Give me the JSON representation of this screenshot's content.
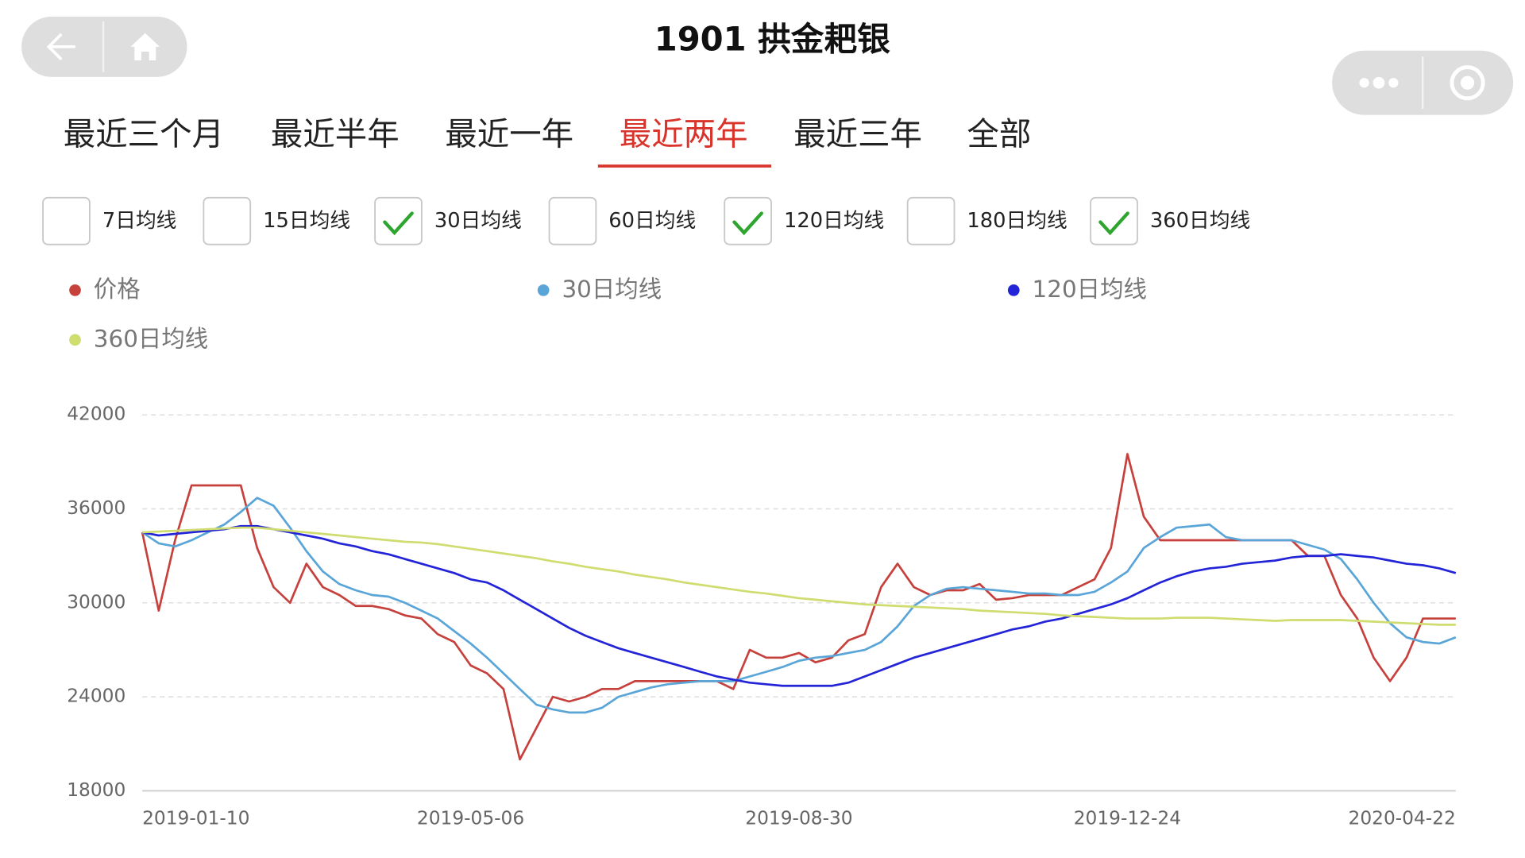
{
  "header": {
    "title": "1901 拱金耙银"
  },
  "tabs": {
    "items": [
      "最近三个月",
      "最近半年",
      "最近一年",
      "最近两年",
      "最近三年",
      "全部"
    ],
    "selected": 3
  },
  "checkboxes": [
    {
      "label": "7日均线",
      "checked": false
    },
    {
      "label": "15日均线",
      "checked": false
    },
    {
      "label": "30日均线",
      "checked": true
    },
    {
      "label": "60日均线",
      "checked": false
    },
    {
      "label": "120日均线",
      "checked": true
    },
    {
      "label": "180日均线",
      "checked": false
    },
    {
      "label": "360日均线",
      "checked": true
    }
  ],
  "chart_data": {
    "type": "line",
    "categories": [
      "2019-01-10",
      null,
      null,
      null,
      null,
      null,
      null,
      null,
      null,
      null,
      null,
      null,
      null,
      null,
      null,
      null,
      null,
      null,
      null,
      null,
      "2019-05-06",
      null,
      null,
      null,
      null,
      null,
      null,
      null,
      null,
      null,
      null,
      null,
      null,
      null,
      null,
      null,
      null,
      null,
      null,
      null,
      "2019-08-30",
      null,
      null,
      null,
      null,
      null,
      null,
      null,
      null,
      null,
      null,
      null,
      null,
      null,
      null,
      null,
      null,
      null,
      null,
      null,
      "2019-12-24",
      null,
      null,
      null,
      null,
      null,
      null,
      null,
      null,
      null,
      null,
      null,
      null,
      null,
      null,
      null,
      null,
      null,
      null,
      null,
      "2020-04-22"
    ],
    "ylim": [
      18000,
      42000
    ],
    "yticks": [
      18000,
      24000,
      30000,
      36000,
      42000
    ],
    "grid": true,
    "series": [
      {
        "name": "价格",
        "color": "#c6403c",
        "values": [
          34500,
          29500,
          34000,
          37500,
          37500,
          37500,
          37500,
          33500,
          31000,
          30000,
          32500,
          31000,
          30500,
          29800,
          29800,
          29600,
          29200,
          29000,
          28000,
          27500,
          26000,
          25500,
          24500,
          20000,
          22000,
          24000,
          23700,
          24000,
          24500,
          24500,
          25000,
          25000,
          25000,
          25000,
          25000,
          25000,
          24500,
          27000,
          26500,
          26500,
          26800,
          26200,
          26500,
          27600,
          28000,
          31000,
          32500,
          31000,
          30500,
          30800,
          30800,
          31200,
          30200,
          30300,
          30500,
          30500,
          30500,
          31000,
          31500,
          33500,
          39500,
          35500,
          34000,
          34000,
          34000,
          34000,
          34000,
          34000,
          34000,
          34000,
          34000,
          33000,
          33000,
          30500,
          29000,
          26500,
          25000,
          26500,
          29000,
          29000,
          29000
        ]
      },
      {
        "name": "30日均线",
        "color": "#5aa5d8",
        "values": [
          34500,
          33800,
          33600,
          34000,
          34500,
          35000,
          35800,
          36700,
          36200,
          34800,
          33300,
          32000,
          31200,
          30800,
          30500,
          30400,
          30000,
          29500,
          29000,
          28200,
          27400,
          26500,
          25500,
          24500,
          23500,
          23200,
          23000,
          23000,
          23300,
          24000,
          24300,
          24600,
          24800,
          24900,
          25000,
          25000,
          25000,
          25300,
          25600,
          25900,
          26300,
          26500,
          26600,
          26800,
          27000,
          27500,
          28500,
          29800,
          30500,
          30900,
          31000,
          30900,
          30800,
          30700,
          30600,
          30600,
          30500,
          30500,
          30700,
          31300,
          32000,
          33500,
          34200,
          34800,
          34900,
          35000,
          34200,
          34000,
          34000,
          34000,
          34000,
          33700,
          33400,
          32800,
          31500,
          30000,
          28700,
          27800,
          27500,
          27400,
          27800
        ]
      },
      {
        "name": "120日均线",
        "color": "#2323d8",
        "values": [
          34500,
          34300,
          34400,
          34500,
          34600,
          34700,
          34900,
          34900,
          34700,
          34500,
          34300,
          34100,
          33800,
          33600,
          33300,
          33100,
          32800,
          32500,
          32200,
          31900,
          31500,
          31300,
          30800,
          30200,
          29600,
          29000,
          28400,
          27900,
          27500,
          27100,
          26800,
          26500,
          26200,
          25900,
          25600,
          25300,
          25100,
          24900,
          24800,
          24700,
          24700,
          24700,
          24700,
          24900,
          25300,
          25700,
          26100,
          26500,
          26800,
          27100,
          27400,
          27700,
          28000,
          28300,
          28500,
          28800,
          29000,
          29300,
          29600,
          29900,
          30300,
          30800,
          31300,
          31700,
          32000,
          32200,
          32300,
          32500,
          32600,
          32700,
          32900,
          33000,
          33000,
          33100,
          33000,
          32900,
          32700,
          32500,
          32400,
          32200,
          31900
        ]
      },
      {
        "name": "360日均线",
        "color": "#cfdc6f",
        "values": [
          34500,
          34550,
          34600,
          34650,
          34700,
          34750,
          34800,
          34800,
          34700,
          34600,
          34500,
          34400,
          34300,
          34200,
          34100,
          34000,
          33900,
          33850,
          33750,
          33600,
          33450,
          33300,
          33150,
          33000,
          32850,
          32650,
          32500,
          32300,
          32150,
          32000,
          31800,
          31650,
          31500,
          31300,
          31150,
          31000,
          30850,
          30700,
          30600,
          30450,
          30300,
          30200,
          30100,
          30000,
          29900,
          29850,
          29800,
          29750,
          29700,
          29650,
          29600,
          29500,
          29450,
          29400,
          29350,
          29300,
          29200,
          29150,
          29100,
          29050,
          29000,
          29000,
          29000,
          29050,
          29050,
          29050,
          29000,
          28950,
          28900,
          28850,
          28900,
          28900,
          28900,
          28900,
          28850,
          28800,
          28750,
          28700,
          28650,
          28600,
          28600
        ]
      }
    ]
  }
}
